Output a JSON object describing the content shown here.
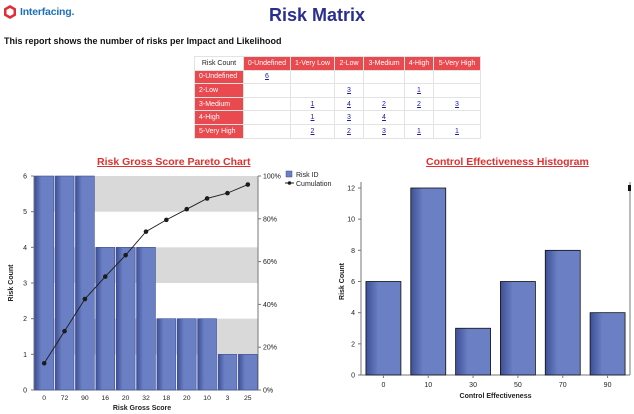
{
  "header": {
    "logo_text": "Interfacing.",
    "title": "Risk Matrix",
    "subtitle": "This report shows the number of risks per Impact and Likelihood"
  },
  "matrix": {
    "corner": "Risk Count",
    "columns": [
      "0-Undefined",
      "1-Very Low",
      "2-Low",
      "3-Medium",
      "4-High",
      "5-Very High"
    ],
    "rows": [
      {
        "label": "0-Undefined",
        "cells": [
          "6",
          "",
          "",
          "",
          "",
          ""
        ]
      },
      {
        "label": "2-Low",
        "cells": [
          "",
          "",
          "3",
          "",
          "1",
          ""
        ]
      },
      {
        "label": "3-Medium",
        "cells": [
          "",
          "1",
          "4",
          "2",
          "2",
          "3"
        ]
      },
      {
        "label": "4-High",
        "cells": [
          "",
          "1",
          "3",
          "4",
          "",
          ""
        ]
      },
      {
        "label": "5-Very High",
        "cells": [
          "",
          "2",
          "2",
          "3",
          "1",
          "1"
        ]
      }
    ]
  },
  "chart_data": [
    {
      "type": "bar",
      "title": "Risk Gross Score Pareto Chart",
      "xlabel": "Risk Gross Score",
      "ylabel": "Risk Count",
      "categories": [
        "0",
        "72",
        "90",
        "16",
        "20",
        "32",
        "18",
        "20",
        "10",
        "3",
        "25"
      ],
      "series": [
        {
          "name": "Risk ID",
          "values": [
            6,
            6,
            6,
            4,
            4,
            4,
            2,
            2,
            2,
            1,
            1
          ]
        },
        {
          "name": "Cumulation",
          "axis": "right",
          "values": [
            12.5,
            27.5,
            42.5,
            53,
            63,
            74,
            79.5,
            84.5,
            89.5,
            92,
            96
          ]
        }
      ],
      "ylim": [
        0,
        6
      ],
      "y2lim": [
        0,
        100
      ],
      "yticks": [
        "0",
        "1",
        "2",
        "3",
        "4",
        "5",
        "6"
      ],
      "y2ticks": [
        "0%",
        "20%",
        "40%",
        "60%",
        "80%",
        "100%"
      ],
      "legend": "top-right",
      "colors": {
        "bar": "#6a7fc4",
        "bar_dark": "#3e4f96",
        "line": "#1c1c1c",
        "band": "#d9d9d9"
      }
    },
    {
      "type": "bar",
      "title": "Control Effectiveness Histogram",
      "xlabel": "Control Effectiveness",
      "ylabel": "Risk Count",
      "categories": [
        "0",
        "10",
        "30",
        "50",
        "70",
        "90"
      ],
      "values": [
        6,
        12,
        3,
        6,
        8,
        4
      ],
      "ylim": [
        0,
        12
      ],
      "yticks": [
        "0",
        "2",
        "4",
        "6",
        "8",
        "10",
        "12"
      ],
      "colors": {
        "bar": "#6a7fc4",
        "bar_dark": "#3e4f96"
      }
    }
  ]
}
